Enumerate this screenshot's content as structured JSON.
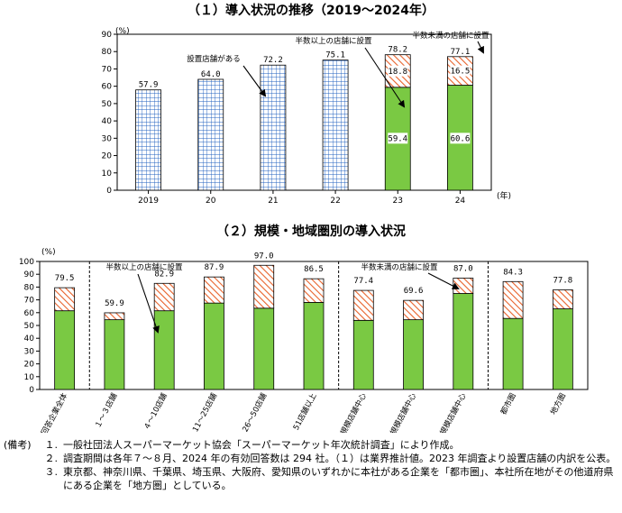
{
  "chart_data": [
    {
      "type": "bar",
      "title": "（１）導入状況の推移（2019～2024年）",
      "y_unit": "(%)",
      "x_unit": "(年)",
      "ylim": [
        0,
        90
      ],
      "yticks": [
        0,
        10,
        20,
        30,
        40,
        50,
        60,
        70,
        80,
        90
      ],
      "grid": false,
      "categories": [
        "2019",
        "20",
        "21",
        "22",
        "23",
        "24"
      ],
      "totals": [
        57.9,
        64.0,
        72.2,
        75.1,
        78.2,
        77.1
      ],
      "total_labels": [
        "57.9",
        "64.0",
        "72.2",
        "75.1",
        "78.2",
        "77.1"
      ],
      "series": [
        {
          "name": "設置店舗がある",
          "values": [
            57.9,
            64.0,
            72.2,
            75.1,
            null,
            null
          ],
          "color": "#1f5fbf",
          "pattern": "grid"
        },
        {
          "name": "半数以上の店舗に設置",
          "values": [
            null,
            null,
            null,
            null,
            59.4,
            60.6
          ],
          "labels": [
            "",
            "",
            "",
            "",
            "59.4",
            "60.6"
          ],
          "color": "#7ac943"
        },
        {
          "name": "半数未満の店舗に設置",
          "values": [
            null,
            null,
            null,
            null,
            18.8,
            16.5
          ],
          "labels": [
            "",
            "",
            "",
            "",
            "18.8",
            "16.5"
          ],
          "color": "#e8622a",
          "pattern": "hatch"
        }
      ]
    },
    {
      "type": "bar",
      "title": "（２）規模・地域圏別の導入状況",
      "y_unit": "(%)",
      "ylim": [
        0,
        100
      ],
      "yticks": [
        0,
        10,
        20,
        30,
        40,
        50,
        60,
        70,
        80,
        90,
        100
      ],
      "grid": false,
      "categories": [
        "回答企業全体",
        "１～３店舗",
        "４～10店舗",
        "11～25店舗",
        "26～50店舗",
        "51店舗以上",
        "小規模店舗中心",
        "中規模店舗中心",
        "大規模店舗中心",
        "都市圏",
        "地方圏"
      ],
      "totals": [
        79.5,
        59.9,
        82.9,
        87.9,
        97.0,
        86.5,
        77.4,
        69.6,
        87.0,
        84.3,
        77.8
      ],
      "total_labels": [
        "79.5",
        "59.9",
        "82.9",
        "87.9",
        "97.0",
        "86.5",
        "77.4",
        "69.6",
        "87.0",
        "84.3",
        "77.8"
      ],
      "series": [
        {
          "name": "半数以上の店舗に設置",
          "values": [
            61.5,
            54.5,
            61.5,
            67.5,
            63.5,
            68.0,
            54.0,
            54.5,
            75.0,
            55.5,
            63.0
          ],
          "color": "#7ac943"
        },
        {
          "name": "半数未満の店舗に設置",
          "values": [
            18.0,
            5.4,
            21.4,
            20.4,
            33.5,
            18.5,
            23.4,
            15.1,
            12.0,
            28.8,
            14.8
          ],
          "color": "#e8622a",
          "pattern": "hatch"
        }
      ],
      "group_separators_after": [
        0,
        5,
        8
      ]
    }
  ],
  "annotations": {
    "c1_exist": "設置店舗がある",
    "c1_half_over": "半数以上の店舗に設置",
    "c1_half_under": "半数未満の店舗に設置",
    "c2_half_over": "半数以上の店舗に設置",
    "c2_half_under": "半数未満の店舗に設置"
  },
  "notes": {
    "head": "(備考)",
    "items": [
      {
        "num": "１.",
        "text": "一般社団法人スーパーマーケット協会「スーパーマーケット年次統計調査」により作成。"
      },
      {
        "num": "２.",
        "text": "調査期間は各年７～８月、2024 年の有効回答数は 294 社。（１）は業界推計値。2023 年調査より設置店舗の内訳を公表。"
      },
      {
        "num": "３.",
        "text": "東京都、神奈川県、千葉県、埼玉県、大阪府、愛知県のいずれかに本社がある企業を「都市圏」、本社所在地がその他道府県にある企業を「地方圏」としている。"
      }
    ]
  }
}
